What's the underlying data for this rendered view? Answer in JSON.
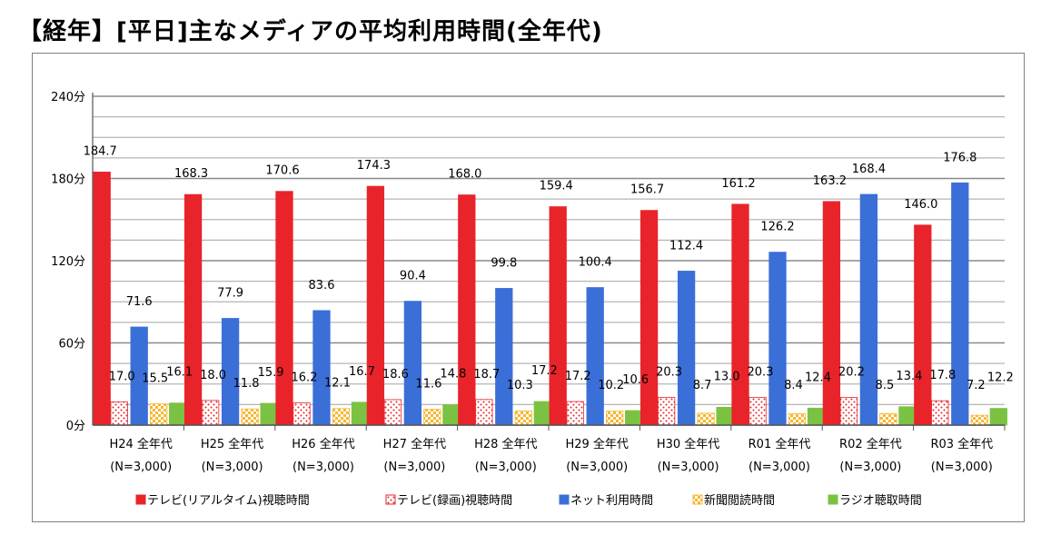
{
  "title": "【経年】[平日]主なメディアの平均利用時間(全年代)",
  "chart_data": {
    "type": "bar",
    "ylim": [
      0,
      240
    ],
    "yticks": [
      0,
      60,
      120,
      180,
      240
    ],
    "ytick_labels": [
      "0分",
      "60分",
      "120分",
      "180分",
      "240分"
    ],
    "grid": true,
    "legend_position": "bottom",
    "categories": [
      [
        "H24 全年代",
        "(N=3,000)"
      ],
      [
        "H25 全年代",
        "(N=3,000)"
      ],
      [
        "H26 全年代",
        "(N=3,000)"
      ],
      [
        "H27 全年代",
        "(N=3,000)"
      ],
      [
        "H28 全年代",
        "(N=3,000)"
      ],
      [
        "H29 全年代",
        "(N=3,000)"
      ],
      [
        "H30 全年代",
        "(N=3,000)"
      ],
      [
        "R01 全年代",
        "(N=3,000)"
      ],
      [
        "R02 全年代",
        "(N=3,000)"
      ],
      [
        "R03 全年代",
        "(N=3,000)"
      ]
    ],
    "series": [
      {
        "name": "テレビ(リアルタイム)視聴時間",
        "color": "#e8242a",
        "pattern": "solid",
        "values": [
          184.7,
          168.3,
          170.6,
          174.3,
          168.0,
          159.4,
          156.7,
          161.2,
          163.2,
          146.0
        ],
        "labels": [
          "184.7",
          "168.3",
          "170.6",
          "174.3",
          "168.0",
          "159.4",
          "156.7",
          "161.2",
          "163.2",
          "146.0"
        ]
      },
      {
        "name": "テレビ(録画)視聴時間",
        "color": "#e8242a",
        "pattern": "dots",
        "values": [
          17.0,
          18.0,
          16.2,
          18.6,
          18.7,
          17.2,
          20.3,
          20.3,
          20.2,
          17.8
        ],
        "labels": [
          "17.0",
          "18.0",
          "16.2",
          "18.6",
          "18.7",
          "17.2",
          "20.3",
          "20.3",
          "20.2",
          "17.8"
        ]
      },
      {
        "name": "ネット利用時間",
        "color": "#3b6fd8",
        "pattern": "solid",
        "values": [
          71.6,
          77.9,
          83.6,
          90.4,
          99.8,
          100.4,
          112.4,
          126.2,
          168.4,
          176.8
        ],
        "labels": [
          "71.6",
          "77.9",
          "83.6",
          "90.4",
          "99.8",
          "100.4",
          "112.4",
          "126.2",
          "168.4",
          "176.8"
        ]
      },
      {
        "name": "新聞閲読時間",
        "color": "#f7b731",
        "pattern": "checker",
        "values": [
          15.5,
          11.8,
          12.1,
          11.6,
          10.3,
          10.2,
          8.7,
          8.4,
          8.5,
          7.2
        ],
        "labels": [
          "15.5",
          "11.8",
          "12.1",
          "11.6",
          "10.3",
          "10.2",
          "8.7",
          "8.4",
          "8.5",
          "7.2"
        ]
      },
      {
        "name": "ラジオ聴取時間",
        "color": "#7cc242",
        "pattern": "solid",
        "values": [
          16.1,
          15.9,
          16.7,
          14.8,
          17.2,
          10.6,
          13.0,
          12.4,
          13.4,
          12.2
        ],
        "labels": [
          "16.1",
          "15.9",
          "16.7",
          "14.8",
          "17.2",
          "10.6",
          "13.0",
          "12.4",
          "13.4",
          "12.2"
        ]
      }
    ]
  }
}
